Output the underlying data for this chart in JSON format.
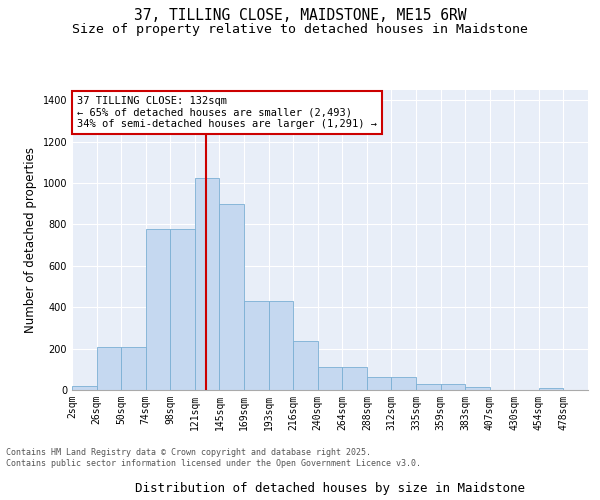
{
  "title_line1": "37, TILLING CLOSE, MAIDSTONE, ME15 6RW",
  "title_line2": "Size of property relative to detached houses in Maidstone",
  "xlabel": "Distribution of detached houses by size in Maidstone",
  "ylabel": "Number of detached properties",
  "bar_labels": [
    "2sqm",
    "26sqm",
    "50sqm",
    "74sqm",
    "98sqm",
    "121sqm",
    "145sqm",
    "169sqm",
    "193sqm",
    "216sqm",
    "240sqm",
    "264sqm",
    "288sqm",
    "312sqm",
    "335sqm",
    "359sqm",
    "383sqm",
    "407sqm",
    "430sqm",
    "454sqm",
    "478sqm"
  ],
  "bar_values": [
    20,
    210,
    210,
    780,
    780,
    1025,
    900,
    430,
    430,
    235,
    110,
    110,
    65,
    65,
    30,
    30,
    15,
    0,
    0,
    10,
    0
  ],
  "bar_color": "#c5d8f0",
  "bar_edge_color": "#7bafd4",
  "annotation_text": "37 TILLING CLOSE: 132sqm\n← 65% of detached houses are smaller (2,493)\n34% of semi-detached houses are larger (1,291) →",
  "annotation_box_color": "#ffffff",
  "annotation_box_edge_color": "#cc0000",
  "ref_line_color": "#cc0000",
  "ylim": [
    0,
    1450
  ],
  "yticks": [
    0,
    200,
    400,
    600,
    800,
    1000,
    1200,
    1400
  ],
  "background_color": "#e8eef8",
  "footer_text": "Contains HM Land Registry data © Crown copyright and database right 2025.\nContains public sector information licensed under the Open Government Licence v3.0.",
  "title_fontsize": 10.5,
  "subtitle_fontsize": 9.5,
  "ylabel_fontsize": 8.5,
  "xlabel_fontsize": 9,
  "tick_fontsize": 7,
  "annotation_fontsize": 7.5
}
